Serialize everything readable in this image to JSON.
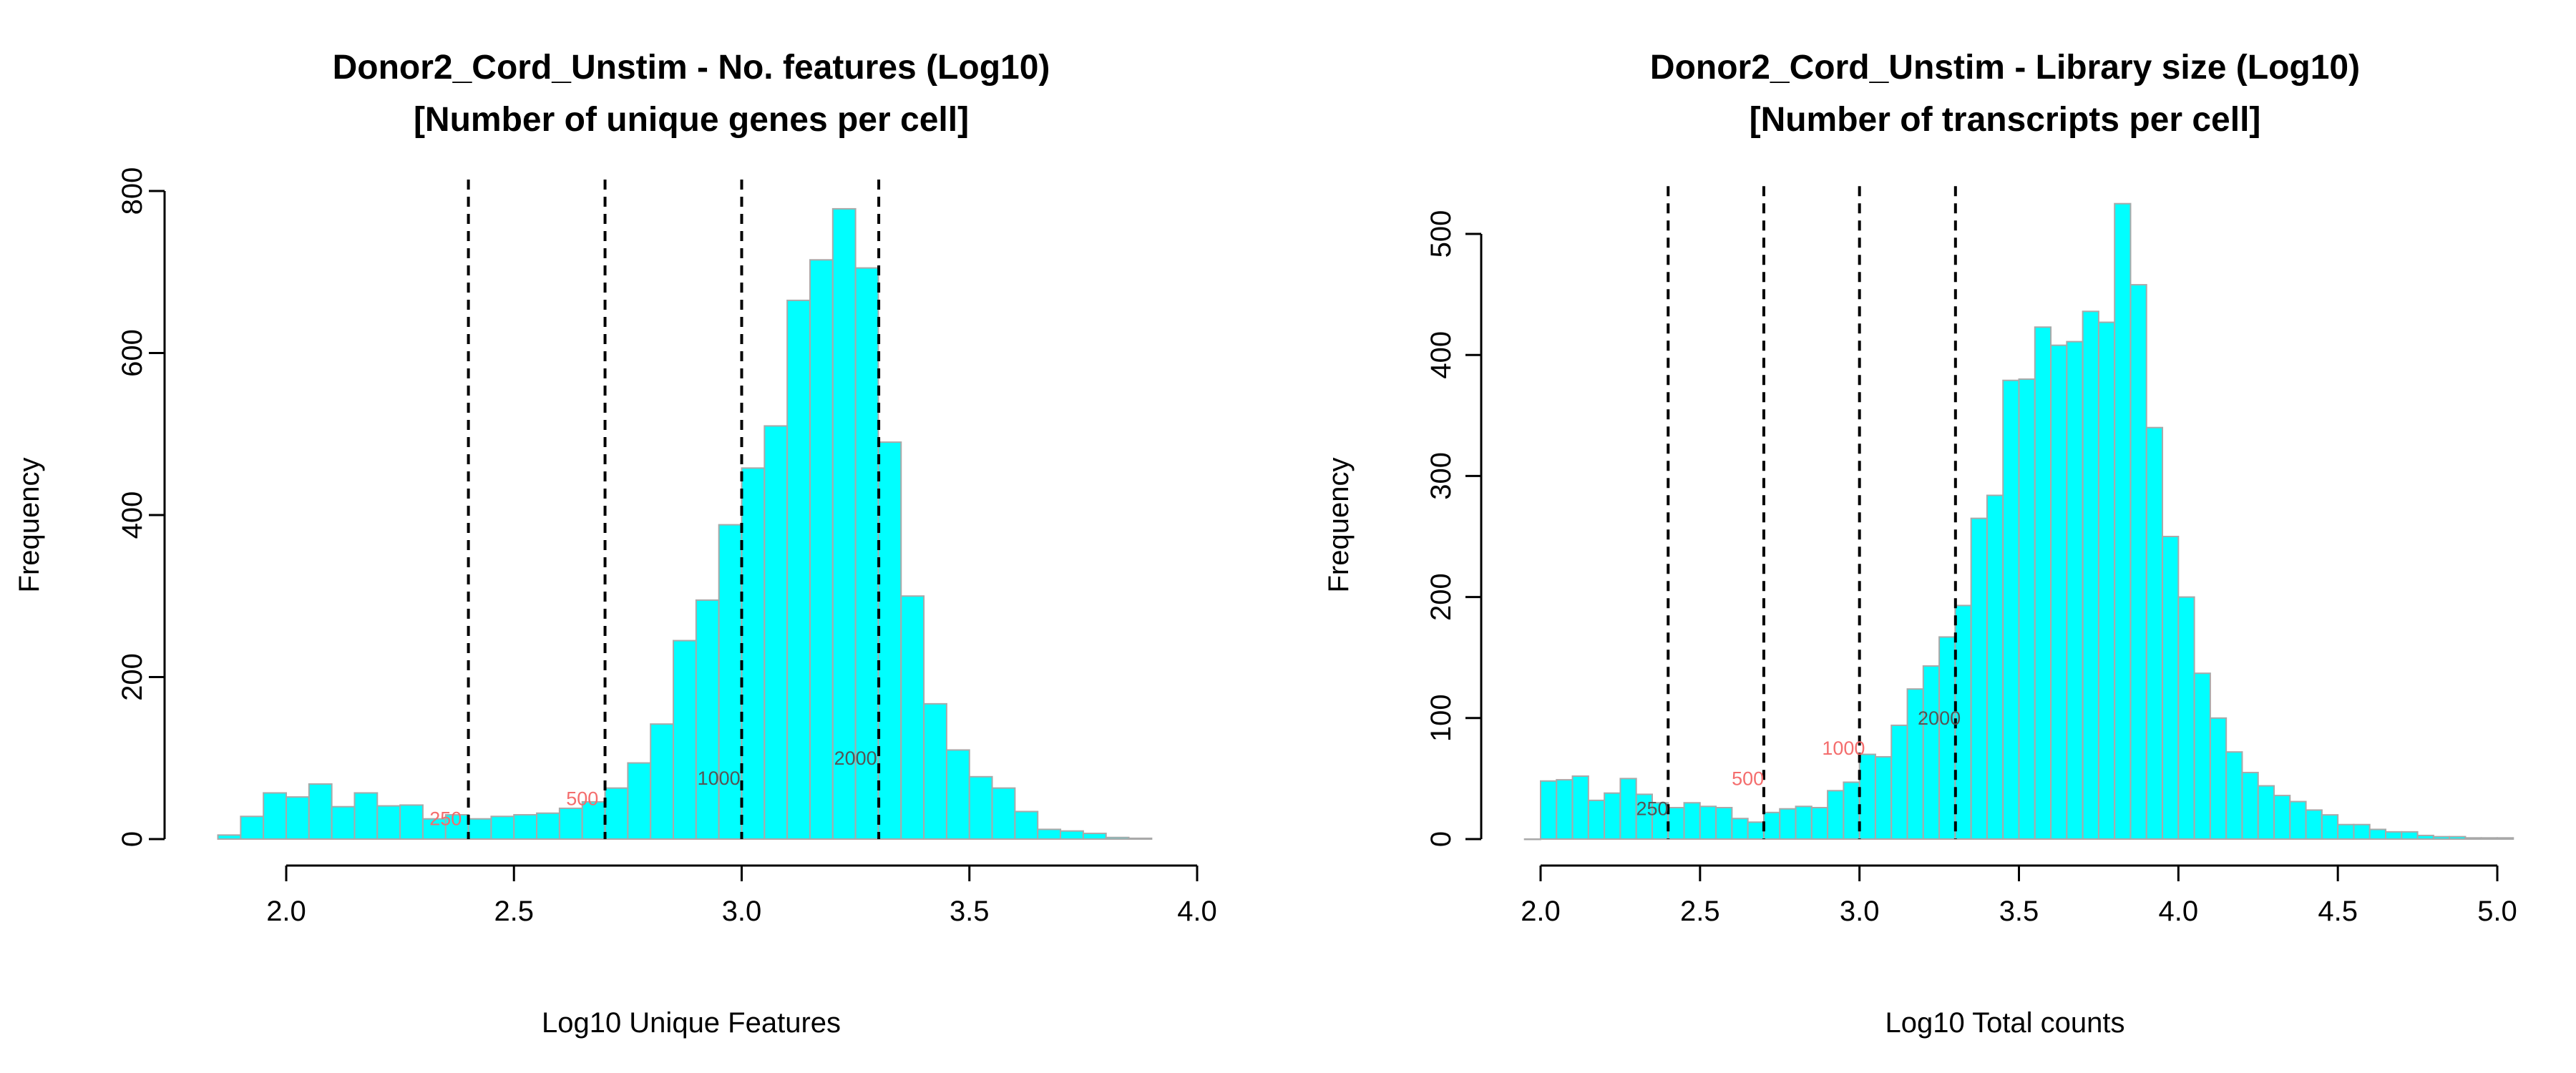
{
  "colors": {
    "bar_fill": "#00ffff",
    "bar_stroke": "#a9a9a9",
    "threshold_line": "#000000",
    "label_red": "#f46d6d",
    "label_dark": "#555555"
  },
  "chart_data": [
    {
      "type": "bar",
      "title": "Donor2_Cord_Unstim - No. features (Log10)",
      "subtitle": "[Number of unique genes per cell]",
      "xlabel": "Log10 Unique Features",
      "ylabel": "Frequency",
      "xlim": [
        1.85,
        4.0
      ],
      "ylim": [
        0,
        800
      ],
      "x_ticks": [
        "2.0",
        "2.5",
        "3.0",
        "3.5",
        "4.0"
      ],
      "y_ticks": [
        "0",
        "200",
        "400",
        "600",
        "800"
      ],
      "bin_width": 0.05,
      "bin_start": 1.85,
      "values": [
        5,
        28,
        57,
        52,
        68,
        40,
        57,
        41,
        42,
        25,
        30,
        25,
        28,
        30,
        32,
        38,
        46,
        63,
        94,
        142,
        245,
        295,
        388,
        458,
        510,
        665,
        715,
        778,
        705,
        490,
        300,
        167,
        110,
        77,
        63,
        34,
        12,
        10,
        7,
        2,
        1
      ],
      "thresholds": [
        2.4,
        2.7,
        3.0,
        3.301
      ],
      "threshold_labels": [
        {
          "text": "250",
          "x": 2.35,
          "y": 25,
          "color": "label_red"
        },
        {
          "text": "500",
          "x": 2.65,
          "y": 50,
          "color": "label_red"
        },
        {
          "text": "1000",
          "x": 2.95,
          "y": 75,
          "color": "label_dark"
        },
        {
          "text": "2000",
          "x": 3.25,
          "y": 100,
          "color": "label_dark"
        }
      ]
    },
    {
      "type": "bar",
      "title": "Donor2_Cord_Unstim - Library size (Log10)",
      "subtitle": "[Number of transcripts per cell]",
      "xlabel": "Log10 Total counts",
      "ylabel": "Frequency",
      "xlim": [
        1.95,
        5.0
      ],
      "ylim": [
        0,
        530
      ],
      "x_ticks": [
        "2.0",
        "2.5",
        "3.0",
        "3.5",
        "4.0",
        "4.5",
        "5.0"
      ],
      "y_ticks": [
        "0",
        "100",
        "200",
        "300",
        "400",
        "500"
      ],
      "bin_width": 0.05,
      "bin_start": 1.95,
      "values": [
        0,
        48,
        49,
        52,
        32,
        38,
        50,
        37,
        30,
        26,
        30,
        27,
        26,
        17,
        14,
        22,
        25,
        27,
        26,
        40,
        47,
        70,
        68,
        94,
        124,
        143,
        167,
        193,
        265,
        284,
        379,
        380,
        423,
        408,
        411,
        436,
        427,
        525,
        458,
        340,
        250,
        200,
        137,
        100,
        72,
        55,
        44,
        36,
        31,
        24,
        20,
        12,
        12,
        8,
        6,
        6,
        3,
        2,
        2,
        1,
        1,
        1
      ],
      "thresholds": [
        2.4,
        2.7,
        3.0,
        3.301
      ],
      "threshold_labels": [
        {
          "text": "250",
          "x": 2.35,
          "y": 25,
          "color": "label_dark"
        },
        {
          "text": "500",
          "x": 2.65,
          "y": 50,
          "color": "label_red"
        },
        {
          "text": "1000",
          "x": 2.95,
          "y": 75,
          "color": "label_red"
        },
        {
          "text": "2000",
          "x": 3.25,
          "y": 100,
          "color": "label_dark"
        }
      ]
    }
  ]
}
